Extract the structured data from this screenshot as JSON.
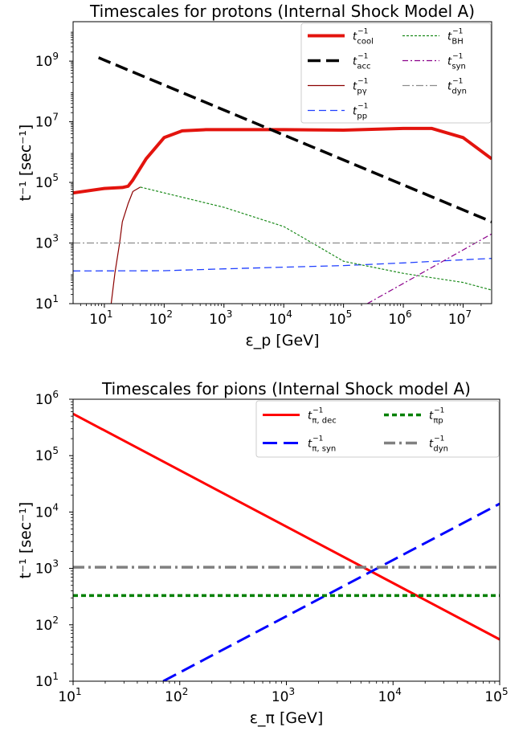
{
  "chart_data": [
    {
      "type": "line",
      "title": "Timescales for protons (Internal Shock Model A)",
      "xlabel": "ε_p [GeV]",
      "ylabel": "t⁻¹ [sec⁻¹]",
      "xscale": "log",
      "yscale": "log",
      "xlim": [
        3,
        30000000
      ],
      "ylim": [
        10,
        20000000000
      ],
      "legend": "top-right",
      "xticks": [
        {
          "value": 10,
          "label": "10",
          "exp": "1"
        },
        {
          "value": 100,
          "label": "10",
          "exp": "2"
        },
        {
          "value": 1000,
          "label": "10",
          "exp": "3"
        },
        {
          "value": 10000,
          "label": "10",
          "exp": "4"
        },
        {
          "value": 100000,
          "label": "10",
          "exp": "5"
        },
        {
          "value": 1000000,
          "label": "10",
          "exp": "6"
        },
        {
          "value": 10000000,
          "label": "10",
          "exp": "7"
        }
      ],
      "yticks": [
        {
          "value": 10,
          "label": "10",
          "exp": "1"
        },
        {
          "value": 1000,
          "label": "10",
          "exp": "3"
        },
        {
          "value": 100000,
          "label": "10",
          "exp": "5"
        },
        {
          "value": 10000000,
          "label": "10",
          "exp": "7"
        },
        {
          "value": 1000000000,
          "label": "10",
          "exp": "9"
        }
      ],
      "series": [
        {
          "name": "cool",
          "color": "#e3140e",
          "width": 4,
          "dash": "",
          "x": [
            3,
            10,
            20,
            25,
            30,
            50,
            100,
            200,
            500,
            1000,
            10000,
            100000,
            1000000,
            3000000,
            10000000,
            30000000
          ],
          "y": [
            45000,
            63000,
            68000,
            75000,
            120000,
            600000,
            3000000,
            5000000,
            5500000,
            5500000,
            5500000,
            5300000,
            6000000,
            6000000,
            3000000,
            600000
          ]
        },
        {
          "name": "acc",
          "color": "#000000",
          "width": 3.5,
          "dash": "16,7",
          "x": [
            8,
            30000000
          ],
          "y": [
            1300000000,
            5000
          ]
        },
        {
          "name": "pγ",
          "color": "#8b0000",
          "width": 1.2,
          "dash": "",
          "x": [
            13,
            15,
            18,
            20,
            25,
            30,
            40
          ],
          "y": [
            10,
            100,
            1000,
            5000,
            20000,
            50000,
            70000
          ]
        },
        {
          "name": "pp",
          "color": "#1f3fff",
          "width": 1.3,
          "dash": "9,5",
          "x": [
            3,
            100,
            1000,
            10000,
            100000,
            1000000,
            10000000,
            30000000
          ],
          "y": [
            120,
            122,
            140,
            160,
            180,
            220,
            280,
            310
          ]
        },
        {
          "name": "BH",
          "color": "#1a8a1a",
          "width": 1.2,
          "dash": "3,2",
          "x": [
            40,
            100,
            1000,
            10000,
            30000,
            100000,
            1000000,
            10000000,
            30000000
          ],
          "y": [
            70000,
            45000,
            15000,
            3500,
            1000,
            250,
            100,
            50,
            28
          ]
        },
        {
          "name": "syn",
          "color": "#8b008b",
          "width": 1.2,
          "dash": "7,3,2,3",
          "x": [
            250000,
            30000000
          ],
          "y": [
            10,
            2000
          ]
        },
        {
          "name": "dyn",
          "color": "#8c8c8c",
          "width": 1.2,
          "dash": "9,3,2,3",
          "x": [
            3,
            30000000
          ],
          "y": [
            1000,
            1000
          ]
        }
      ],
      "legend_entries": [
        {
          "sub": "cool",
          "sup": "−1",
          "series": 0
        },
        {
          "sub": "acc",
          "sup": "−1",
          "series": 1
        },
        {
          "sub": "pγ",
          "sup": "−1",
          "series": 2
        },
        {
          "sub": "pp",
          "sup": "−1",
          "series": 3
        },
        {
          "sub": "BH",
          "sup": "−1",
          "series": 4
        },
        {
          "sub": "syn",
          "sup": "−1",
          "series": 5
        },
        {
          "sub": "dyn",
          "sup": "−1",
          "series": 6
        }
      ]
    },
    {
      "type": "line",
      "title": "Timescales for pions (Internal Shock model A)",
      "xlabel": "ε_π [GeV]",
      "ylabel": "t⁻¹ [sec⁻¹]",
      "xscale": "log",
      "yscale": "log",
      "xlim": [
        10,
        100000
      ],
      "ylim": [
        10,
        1000000
      ],
      "legend": "top-right",
      "xticks": [
        {
          "value": 10,
          "label": "10",
          "exp": "1"
        },
        {
          "value": 100,
          "label": "10",
          "exp": "2"
        },
        {
          "value": 1000,
          "label": "10",
          "exp": "3"
        },
        {
          "value": 10000,
          "label": "10",
          "exp": "4"
        },
        {
          "value": 100000,
          "label": "10",
          "exp": "5"
        }
      ],
      "yticks": [
        {
          "value": 10,
          "label": "10",
          "exp": "1"
        },
        {
          "value": 100,
          "label": "10",
          "exp": "2"
        },
        {
          "value": 1000,
          "label": "10",
          "exp": "3"
        },
        {
          "value": 10000,
          "label": "10",
          "exp": "4"
        },
        {
          "value": 100000,
          "label": "10",
          "exp": "5"
        },
        {
          "value": 1000000,
          "label": "10",
          "exp": "6"
        }
      ],
      "series": [
        {
          "name": "π,dec",
          "color": "#ff0000",
          "width": 3,
          "dash": "",
          "x": [
            10,
            100000
          ],
          "y": [
            550000,
            55
          ]
        },
        {
          "name": "π,syn",
          "color": "#0000ff",
          "width": 3,
          "dash": "18,8",
          "x": [
            70,
            100000
          ],
          "y": [
            10,
            14000
          ]
        },
        {
          "name": "πp",
          "color": "#008000",
          "width": 3.5,
          "dash": "6,4",
          "x": [
            10,
            100000
          ],
          "y": [
            330,
            330
          ]
        },
        {
          "name": "dyn",
          "color": "#808080",
          "width": 3.5,
          "dash": "14,5,3,5",
          "x": [
            10,
            100000
          ],
          "y": [
            1050,
            1050
          ]
        }
      ],
      "legend_entries": [
        {
          "sub": "π, dec",
          "sup": "−1",
          "series": 0
        },
        {
          "sub": "π, syn",
          "sup": "−1",
          "series": 1
        },
        {
          "sub": "πp",
          "sup": "−1",
          "series": 2
        },
        {
          "sub": "dyn",
          "sup": "−1",
          "series": 3
        }
      ]
    }
  ]
}
